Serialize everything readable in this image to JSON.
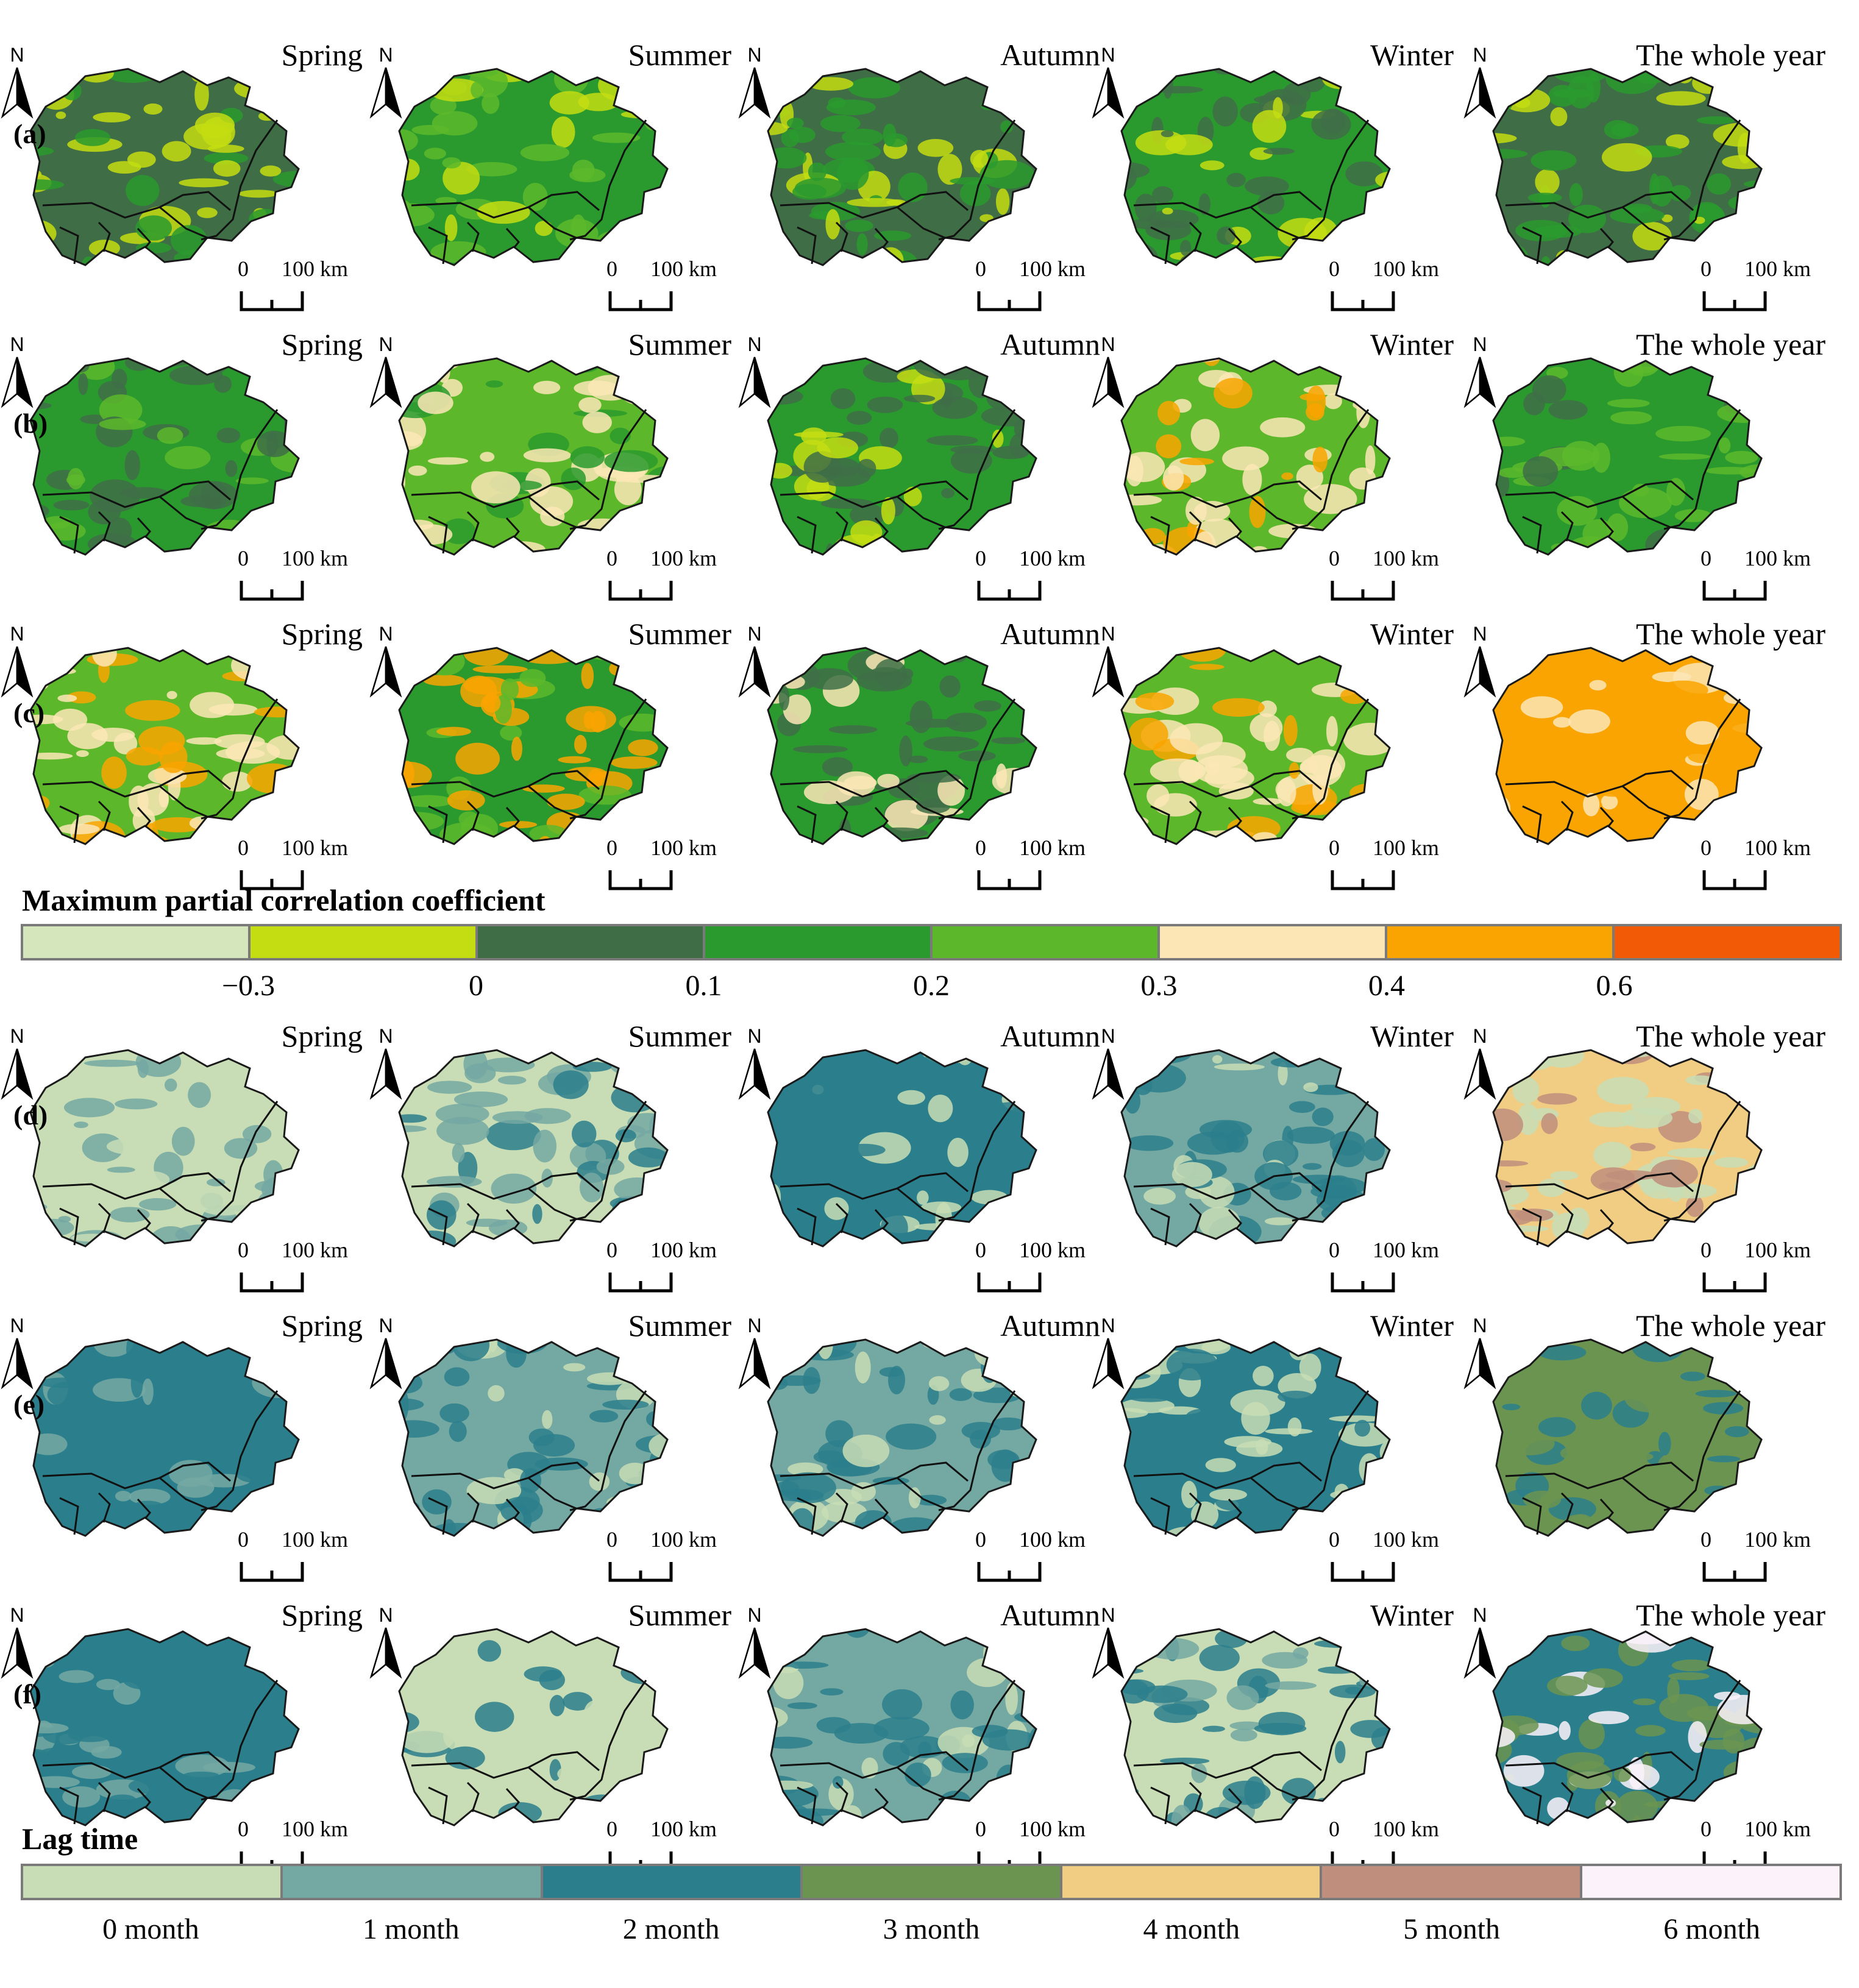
{
  "season_labels": [
    "Spring",
    "Summer",
    "Autumn",
    "Winter",
    "The whole year"
  ],
  "north_label": "N",
  "scale_zero": "0",
  "scale_distance": "100 km",
  "rows": [
    {
      "label": "(a)",
      "colors": [
        [
          "#3f6e46",
          "#c4dd12",
          "#2a9a2e"
        ],
        [
          "#2a9a2e",
          "#5cb82a",
          "#c4dd12"
        ],
        [
          "#3f6e46",
          "#2a9a2e",
          "#c4dd12"
        ],
        [
          "#2a9a2e",
          "#3f6e46",
          "#c4dd12"
        ],
        [
          "#3f6e46",
          "#2a9a2e",
          "#c4dd12"
        ]
      ]
    },
    {
      "label": "(b)",
      "colors": [
        [
          "#2a9a2e",
          "#3f6e46",
          "#5cb82a"
        ],
        [
          "#5cb82a",
          "#fce6b6",
          "#2a9a2e"
        ],
        [
          "#2a9a2e",
          "#3f6e46",
          "#c4dd12"
        ],
        [
          "#5cb82a",
          "#fce6b6",
          "#f9a400"
        ],
        [
          "#2a9a2e",
          "#5cb82a",
          "#3f6e46"
        ]
      ]
    },
    {
      "label": "(c)",
      "colors": [
        [
          "#5cb82a",
          "#fce6b6",
          "#f9a400"
        ],
        [
          "#2a9a2e",
          "#f9a400",
          "#5cb82a"
        ],
        [
          "#2a9a2e",
          "#3f6e46",
          "#fce6b6"
        ],
        [
          "#5cb82a",
          "#fce6b6",
          "#f9a400"
        ],
        [
          "#f9a400",
          "#f9a400",
          "#fce6b6"
        ]
      ]
    },
    {
      "label": "(d)",
      "colors": [
        [
          "#c8ddb5",
          "#74a8a2",
          "#c8ddb5"
        ],
        [
          "#c8ddb5",
          "#74a8a2",
          "#2b7f8c"
        ],
        [
          "#2b7f8c",
          "#2b7f8c",
          "#c8ddb5"
        ],
        [
          "#74a8a2",
          "#2b7f8c",
          "#c8ddb5"
        ],
        [
          "#f1cd84",
          "#c8ddb5",
          "#c08e7d"
        ]
      ]
    },
    {
      "label": "(e)",
      "colors": [
        [
          "#2b7f8c",
          "#2b7f8c",
          "#74a8a2"
        ],
        [
          "#74a8a2",
          "#2b7f8c",
          "#c8ddb5"
        ],
        [
          "#74a8a2",
          "#2b7f8c",
          "#c8ddb5"
        ],
        [
          "#2b7f8c",
          "#c8ddb5",
          "#2b7f8c"
        ],
        [
          "#6b9450",
          "#6b9450",
          "#2b7f8c"
        ]
      ]
    },
    {
      "label": "(f)",
      "colors": [
        [
          "#2b7f8c",
          "#2b7f8c",
          "#74a8a2"
        ],
        [
          "#c8ddb5",
          "#c8ddb5",
          "#2b7f8c"
        ],
        [
          "#74a8a2",
          "#2b7f8c",
          "#c8ddb5"
        ],
        [
          "#c8ddb5",
          "#2b7f8c",
          "#74a8a2"
        ],
        [
          "#2b7f8c",
          "#6b9450",
          "#fcf2fa"
        ]
      ]
    }
  ],
  "legend_corr": {
    "title": "Maximum partial correlation coefficient",
    "colors": [
      "#d5e6bd",
      "#c4dd12",
      "#3f6e46",
      "#2a9a2e",
      "#5cb82a",
      "#fce6b6",
      "#f9a400",
      "#f25a05"
    ],
    "ticks": [
      "−0.3",
      "0",
      "0.1",
      "0.2",
      "0.3",
      "0.4",
      "0.6"
    ]
  },
  "legend_lag": {
    "title": "Lag time",
    "colors": [
      "#c8ddb5",
      "#74a8a2",
      "#2b7f8c",
      "#6b9450",
      "#f1cd84",
      "#c08e7d",
      "#fcf2fa"
    ],
    "labels": [
      "0 month",
      "1 month",
      "2 month",
      "3 month",
      "4 month",
      "5 month",
      "6 month"
    ]
  }
}
